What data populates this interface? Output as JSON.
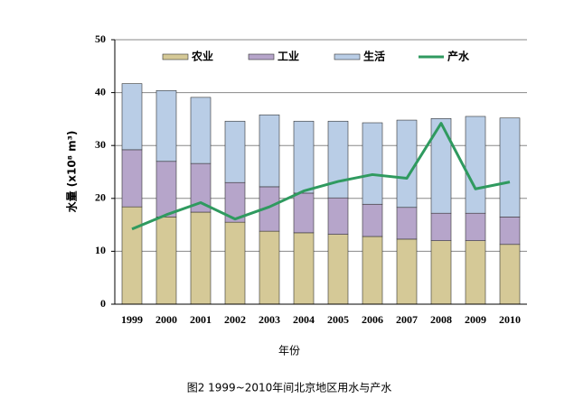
{
  "chart_data": {
    "type": "bar",
    "stacked": true,
    "categories": [
      "1999",
      "2000",
      "2001",
      "2002",
      "2003",
      "2004",
      "2005",
      "2006",
      "2007",
      "2008",
      "2009",
      "2010"
    ],
    "series": [
      {
        "name": "农业",
        "color": "#d5c997",
        "values": [
          18.4,
          16.5,
          17.4,
          15.5,
          13.8,
          13.5,
          13.2,
          12.8,
          12.3,
          12.0,
          12.0,
          11.3
        ]
      },
      {
        "name": "工业",
        "color": "#b6a5ca",
        "values": [
          10.8,
          10.5,
          9.2,
          7.5,
          8.4,
          7.5,
          6.9,
          6.1,
          6.0,
          5.2,
          5.2,
          5.2
        ]
      },
      {
        "name": "生活",
        "color": "#b9cde6",
        "values": [
          12.5,
          13.4,
          12.5,
          11.6,
          13.6,
          13.6,
          14.5,
          15.4,
          16.5,
          17.9,
          18.3,
          18.7
        ]
      },
      {
        "name": "产水",
        "color": "#2f9a5f",
        "type": "line",
        "values": [
          14.2,
          16.9,
          19.2,
          16.1,
          18.4,
          21.4,
          23.2,
          24.5,
          23.8,
          34.2,
          21.8,
          23.1
        ]
      }
    ],
    "ylim": [
      0,
      50
    ],
    "yticks": [
      0,
      10,
      20,
      30,
      40,
      50
    ],
    "grid": true,
    "ylabel": "水量 (x10⁸ m³)",
    "xlabel": "年份",
    "caption": "图2  1999~2010年间北京地区用水与产水"
  }
}
